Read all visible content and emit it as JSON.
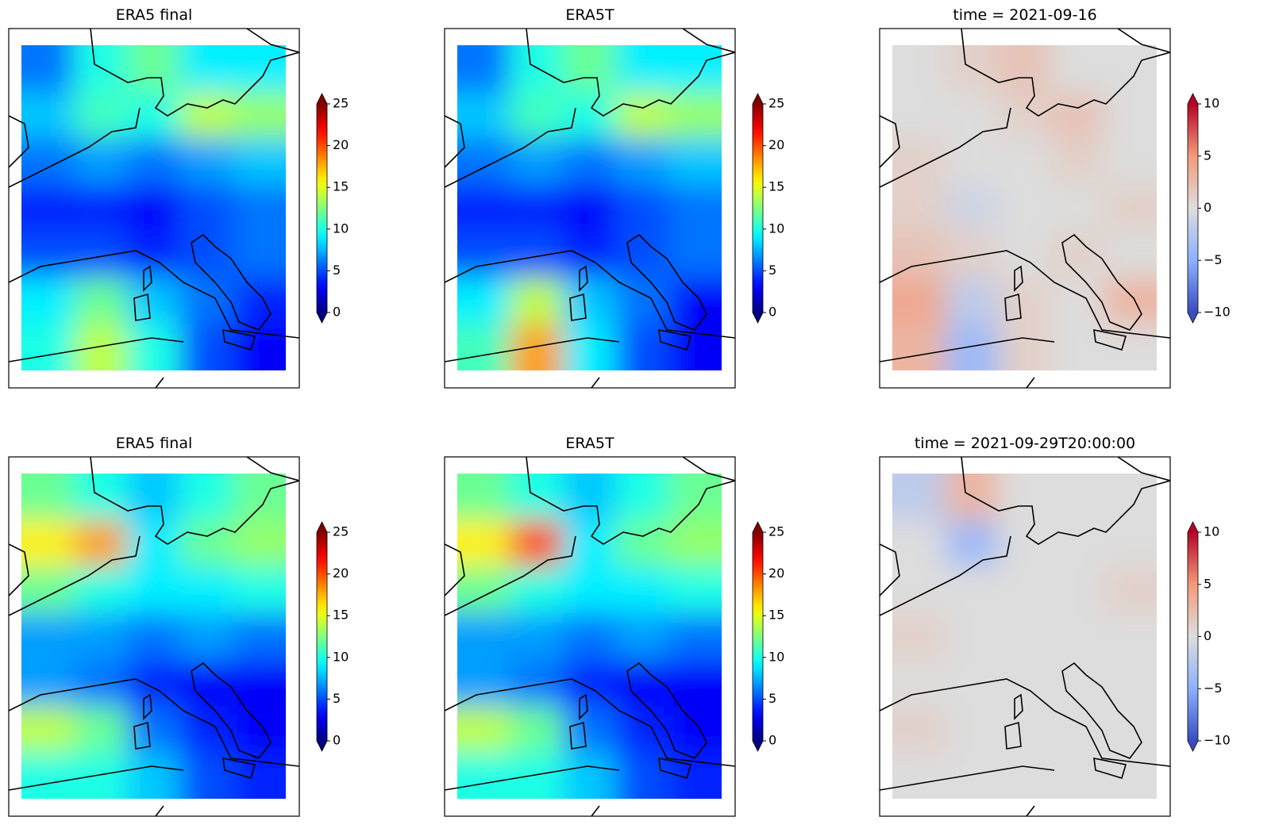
{
  "chart_data": [
    {
      "type": "heatmap",
      "title": "ERA5 final",
      "colormap": "jet",
      "extend": "both",
      "clim": [
        0,
        25
      ],
      "cticks": [
        0,
        5,
        10,
        15,
        20,
        25
      ],
      "values": [
        [
          6,
          10,
          12,
          9,
          9
        ],
        [
          8,
          11,
          10,
          14,
          13
        ],
        [
          6,
          7,
          6,
          7,
          8
        ],
        [
          4,
          4,
          3,
          5,
          6
        ],
        [
          5,
          5,
          4,
          5,
          6
        ],
        [
          9,
          12,
          8,
          6,
          4
        ],
        [
          10,
          14,
          10,
          5,
          3
        ]
      ]
    },
    {
      "type": "heatmap",
      "title": "ERA5T",
      "colormap": "jet",
      "extend": "both",
      "clim": [
        0,
        25
      ],
      "cticks": [
        0,
        5,
        10,
        15,
        20,
        25
      ],
      "values": [
        [
          6,
          10,
          12,
          9,
          9
        ],
        [
          8,
          11,
          10,
          14,
          13
        ],
        [
          6,
          7,
          6,
          7,
          8
        ],
        [
          4,
          4,
          3,
          5,
          6
        ],
        [
          5,
          5,
          4,
          5,
          6
        ],
        [
          9,
          14,
          8,
          6,
          3
        ],
        [
          11,
          18,
          9,
          5,
          3
        ]
      ]
    },
    {
      "type": "heatmap",
      "title": "time = 2021-09-16",
      "colormap": "coolwarm",
      "extend": "both",
      "clim": [
        -10,
        10
      ],
      "cticks": [
        {
          "value": -10,
          "label": "−10"
        },
        {
          "value": -5,
          "label": "−5"
        },
        0,
        5,
        10
      ],
      "values": [
        [
          0,
          1,
          2,
          0,
          0
        ],
        [
          0,
          0,
          1,
          2,
          0
        ],
        [
          1,
          0,
          0,
          1,
          0
        ],
        [
          1,
          -1,
          0,
          0,
          1
        ],
        [
          2,
          1,
          0,
          1,
          0
        ],
        [
          4,
          -2,
          1,
          0,
          3
        ],
        [
          3,
          -4,
          1,
          0,
          0
        ]
      ]
    },
    {
      "type": "heatmap",
      "title": "ERA5 final",
      "colormap": "jet",
      "extend": "both",
      "clim": [
        0,
        25
      ],
      "cticks": [
        0,
        5,
        10,
        15,
        20,
        25
      ],
      "values": [
        [
          12,
          10,
          8,
          10,
          12
        ],
        [
          16,
          18,
          9,
          12,
          13
        ],
        [
          12,
          10,
          9,
          9,
          10
        ],
        [
          7,
          7,
          6,
          7,
          6
        ],
        [
          7,
          6,
          4,
          3,
          3
        ],
        [
          14,
          12,
          6,
          4,
          3
        ],
        [
          10,
          10,
          8,
          5,
          4
        ]
      ]
    },
    {
      "type": "heatmap",
      "title": "ERA5T",
      "colormap": "jet",
      "extend": "both",
      "clim": [
        0,
        25
      ],
      "cticks": [
        0,
        5,
        10,
        15,
        20,
        25
      ],
      "values": [
        [
          12,
          10,
          8,
          10,
          12
        ],
        [
          16,
          20,
          9,
          12,
          13
        ],
        [
          12,
          10,
          9,
          9,
          10
        ],
        [
          7,
          7,
          6,
          7,
          6
        ],
        [
          7,
          6,
          4,
          3,
          3
        ],
        [
          14,
          12,
          6,
          4,
          3
        ],
        [
          10,
          10,
          8,
          5,
          4
        ]
      ]
    },
    {
      "type": "heatmap",
      "title": "time = 2021-09-29T20:00:00",
      "colormap": "coolwarm",
      "extend": "both",
      "clim": [
        -10,
        10
      ],
      "cticks": [
        {
          "value": -10,
          "label": "−10"
        },
        {
          "value": -5,
          "label": "−5"
        },
        0,
        5,
        10
      ],
      "values": [
        [
          -2,
          3,
          0,
          0,
          0
        ],
        [
          0,
          -4,
          0,
          0,
          0
        ],
        [
          0,
          0,
          0,
          0,
          1
        ],
        [
          1,
          0,
          0,
          0,
          0
        ],
        [
          0,
          0,
          0,
          0,
          0
        ],
        [
          1,
          0,
          0,
          0,
          0
        ],
        [
          0,
          0,
          0,
          0,
          0
        ]
      ]
    }
  ]
}
